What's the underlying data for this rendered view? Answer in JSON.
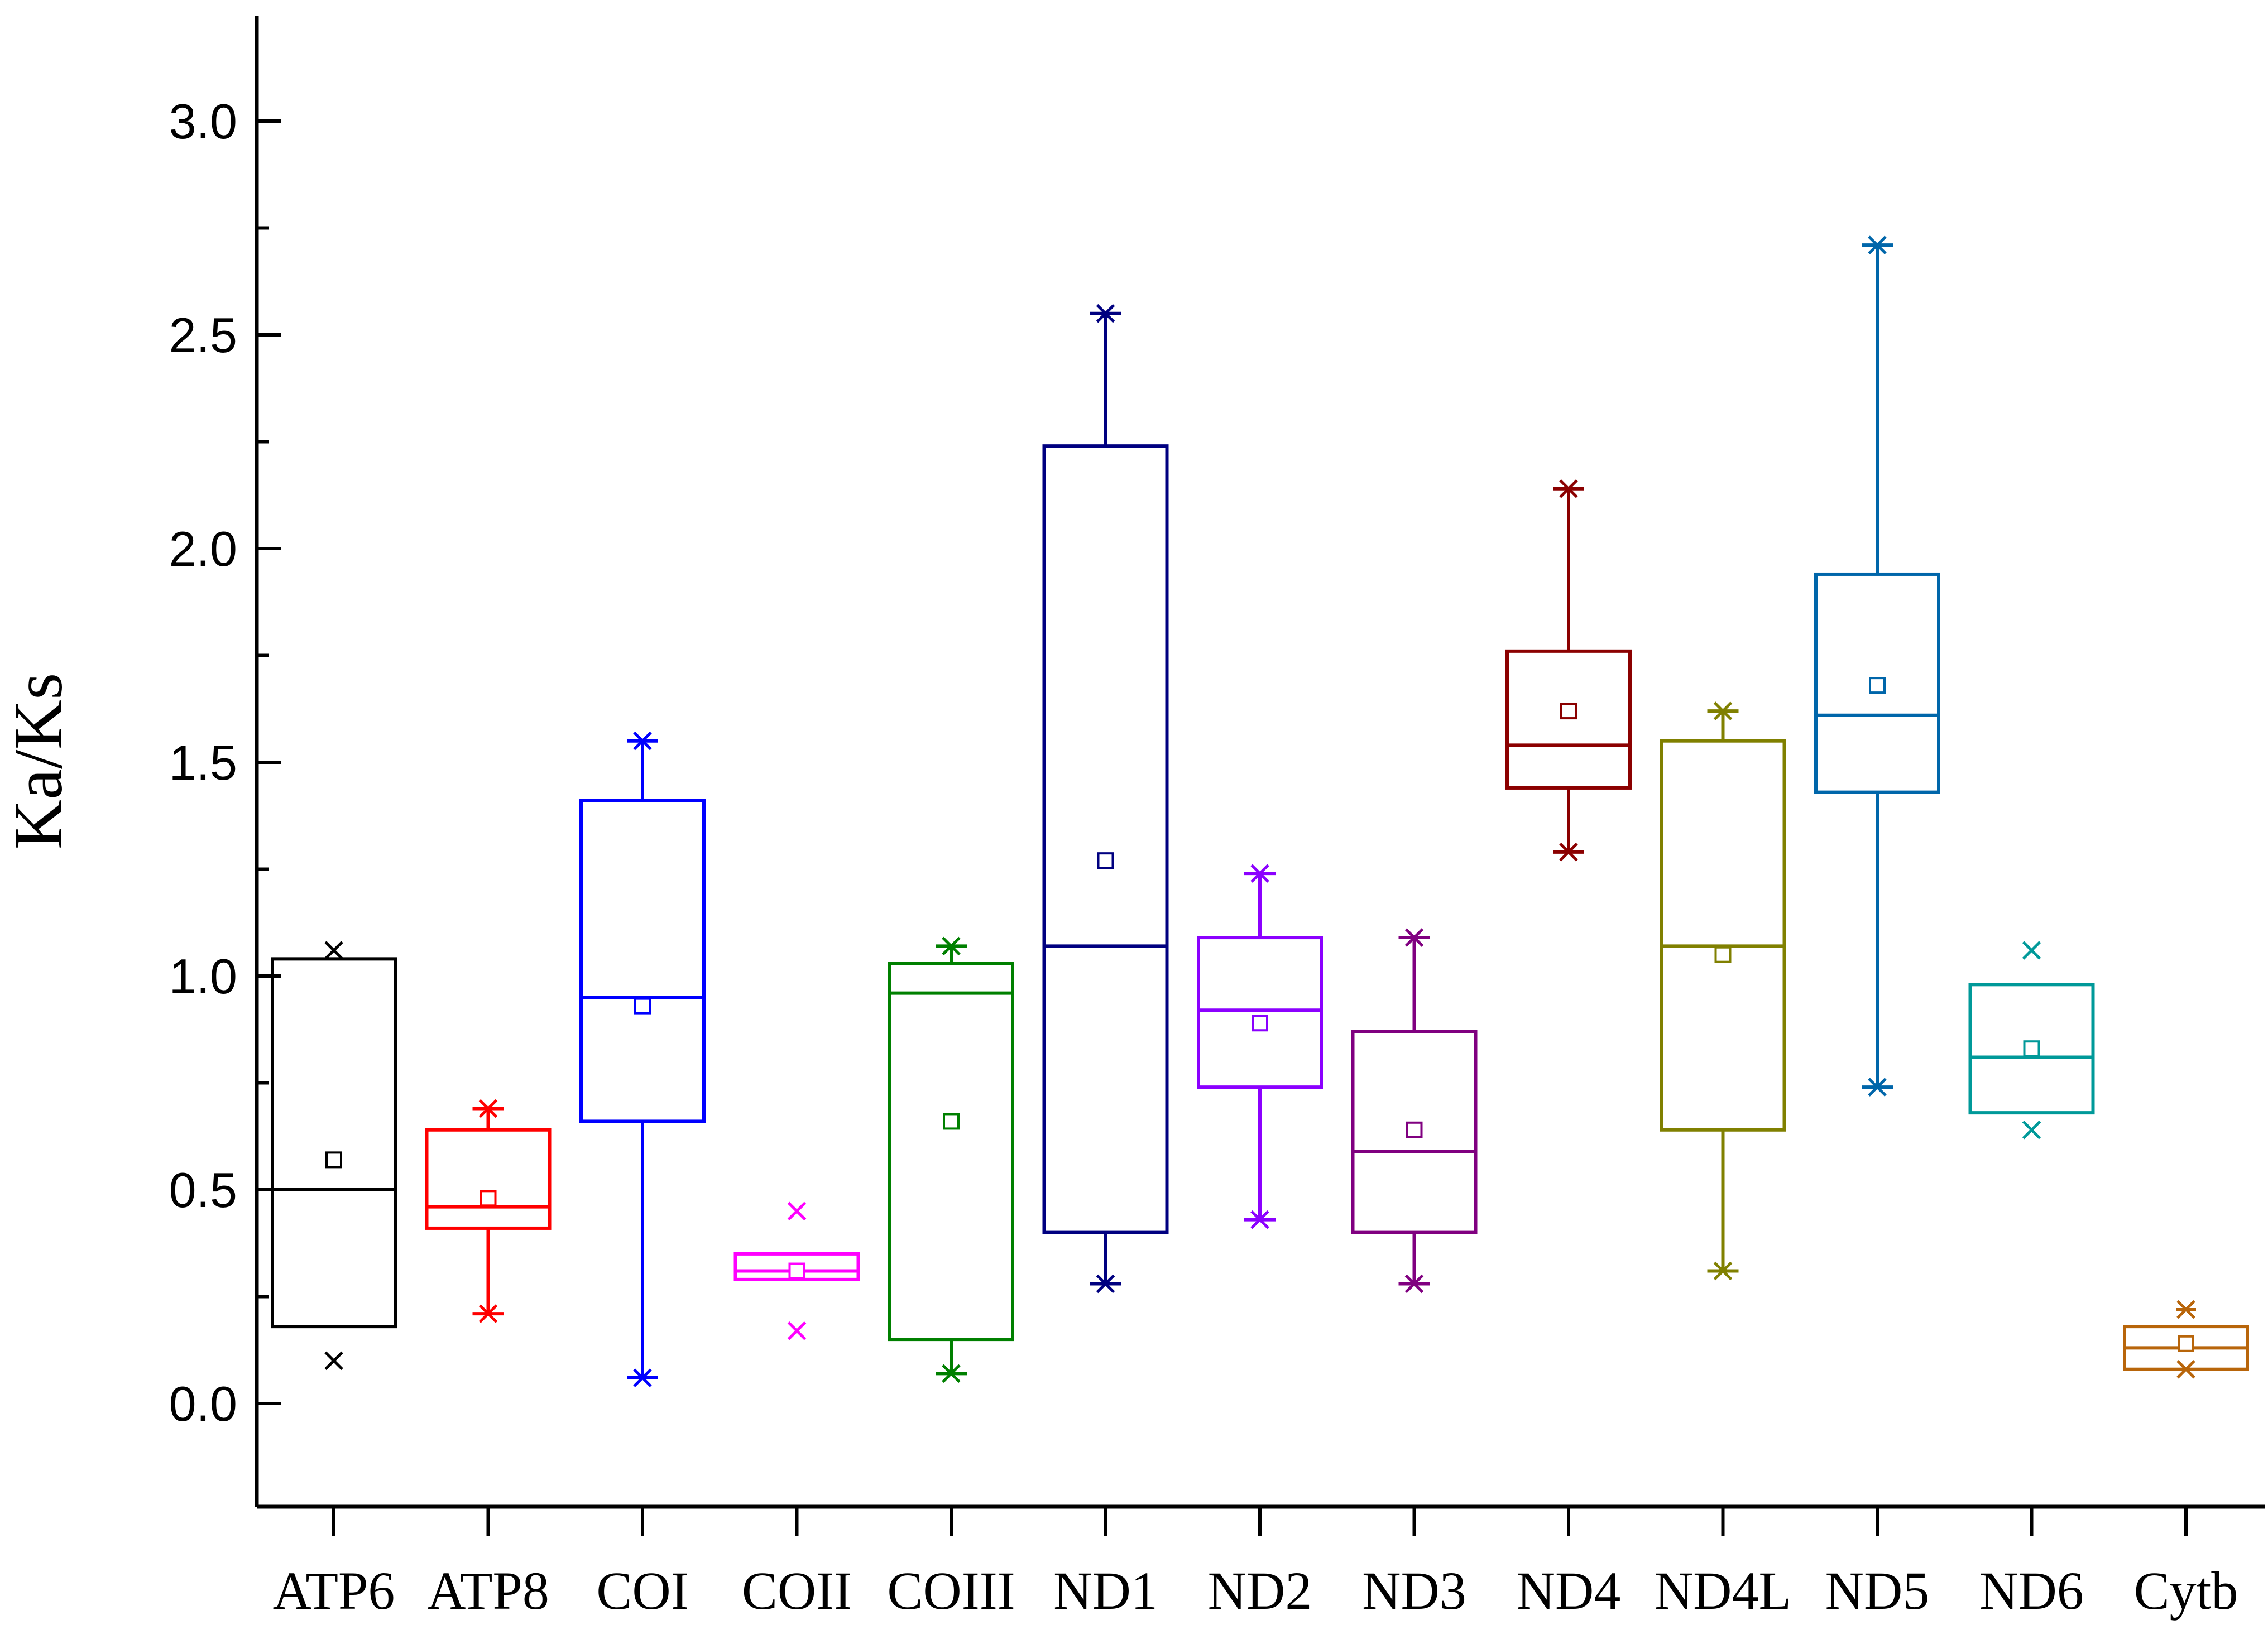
{
  "chart_data": {
    "type": "box",
    "title": "",
    "xlabel": "",
    "ylabel": "Ka/Ks",
    "ylim": [
      -0.25,
      3.25
    ],
    "yticks": [
      {
        "value": 0.0,
        "label": "0.0"
      },
      {
        "value": 0.5,
        "label": "0.5"
      },
      {
        "value": 1.0,
        "label": "1.0"
      },
      {
        "value": 1.5,
        "label": "1.5"
      },
      {
        "value": 2.0,
        "label": "2.0"
      },
      {
        "value": 2.5,
        "label": "2.5"
      },
      {
        "value": 3.0,
        "label": "3.0"
      }
    ],
    "grid": false,
    "legend": "none",
    "categories": [
      "ATP6",
      "ATP8",
      "COI",
      "COII",
      "COIII",
      "ND1",
      "ND2",
      "ND3",
      "ND4",
      "ND4L",
      "ND5",
      "ND6",
      "Cytb"
    ],
    "series": [
      {
        "name": "ATP6",
        "color": "#000000",
        "min": 0.1,
        "q1": 0.18,
        "median": 0.5,
        "q3": 1.04,
        "max": 1.06,
        "mean": 0.57,
        "whisker_low": 0.18,
        "whisker_high": 1.04
      },
      {
        "name": "ATP8",
        "color": "#ff0000",
        "min": 0.21,
        "q1": 0.41,
        "median": 0.46,
        "q3": 0.64,
        "max": 0.69,
        "mean": 0.48,
        "whisker_low": 0.21,
        "whisker_high": 0.69
      },
      {
        "name": "COI",
        "color": "#0000ff",
        "min": 0.06,
        "q1": 0.66,
        "median": 0.95,
        "q3": 1.41,
        "max": 1.55,
        "mean": 0.93,
        "whisker_low": 0.06,
        "whisker_high": 1.55
      },
      {
        "name": "COII",
        "color": "#ff00ff",
        "min": 0.17,
        "q1": 0.29,
        "median": 0.31,
        "q3": 0.35,
        "max": 0.45,
        "mean": 0.31,
        "whisker_low": 0.29,
        "whisker_high": 0.35
      },
      {
        "name": "COIII",
        "color": "#008000",
        "min": 0.07,
        "q1": 0.15,
        "median": 0.96,
        "q3": 1.03,
        "max": 1.07,
        "mean": 0.66,
        "whisker_low": 0.07,
        "whisker_high": 1.07
      },
      {
        "name": "ND1",
        "color": "#000080",
        "min": 0.28,
        "q1": 0.4,
        "median": 1.07,
        "q3": 2.24,
        "max": 2.55,
        "mean": 1.27,
        "whisker_low": 0.28,
        "whisker_high": 2.55
      },
      {
        "name": "ND2",
        "color": "#8b00ff",
        "min": 0.43,
        "q1": 0.74,
        "median": 0.92,
        "q3": 1.09,
        "max": 1.24,
        "mean": 0.89,
        "whisker_low": 0.43,
        "whisker_high": 1.24
      },
      {
        "name": "ND3",
        "color": "#800080",
        "min": 0.28,
        "q1": 0.4,
        "median": 0.59,
        "q3": 0.87,
        "max": 1.09,
        "mean": 0.64,
        "whisker_low": 0.28,
        "whisker_high": 1.09
      },
      {
        "name": "ND4",
        "color": "#8b0000",
        "min": 1.29,
        "q1": 1.44,
        "median": 1.54,
        "q3": 1.76,
        "max": 2.14,
        "mean": 1.62,
        "whisker_low": 1.29,
        "whisker_high": 2.14
      },
      {
        "name": "ND4L",
        "color": "#808000",
        "min": 0.31,
        "q1": 0.64,
        "median": 1.07,
        "q3": 1.55,
        "max": 1.62,
        "mean": 1.05,
        "whisker_low": 0.31,
        "whisker_high": 1.62
      },
      {
        "name": "ND5",
        "color": "#0066aa",
        "min": 0.74,
        "q1": 1.43,
        "median": 1.61,
        "q3": 1.94,
        "max": 2.71,
        "mean": 1.68,
        "whisker_low": 0.74,
        "whisker_high": 2.71
      },
      {
        "name": "ND6",
        "color": "#009999",
        "min": 0.64,
        "q1": 0.68,
        "median": 0.81,
        "q3": 0.98,
        "max": 1.06,
        "mean": 0.83,
        "whisker_low": 0.68,
        "whisker_high": 0.98
      },
      {
        "name": "Cytb",
        "color": "#b8650a",
        "min": 0.08,
        "q1": 0.08,
        "median": 0.13,
        "q3": 0.18,
        "max": 0.22,
        "mean": 0.14,
        "whisker_low": 0.08,
        "whisker_high": 0.18
      }
    ]
  }
}
